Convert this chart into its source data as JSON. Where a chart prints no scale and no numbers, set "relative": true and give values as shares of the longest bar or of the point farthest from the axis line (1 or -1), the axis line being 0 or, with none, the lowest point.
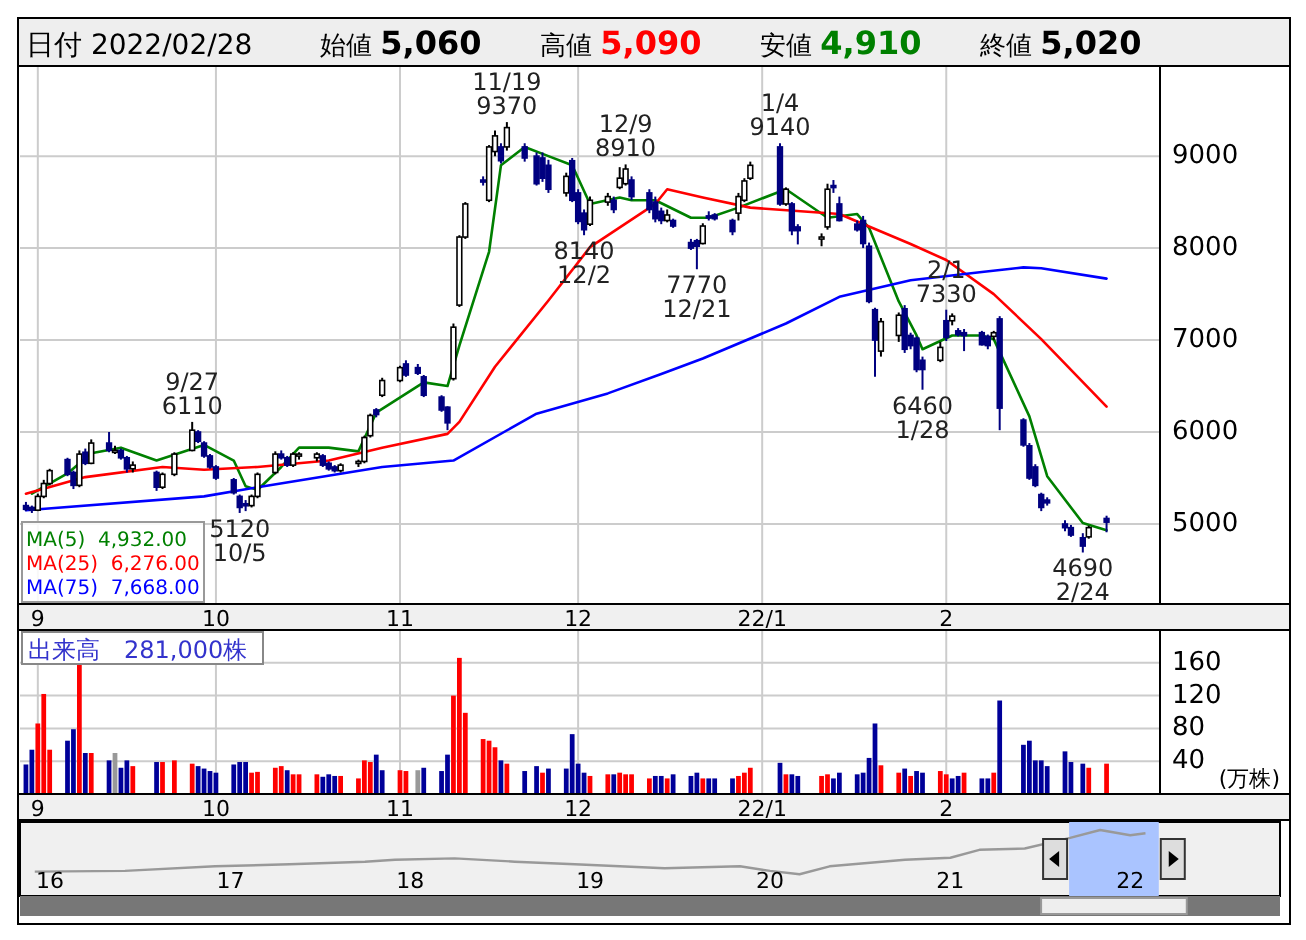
{
  "chart_data": [
    {
      "type": "candlestick",
      "title": "日付 2022/02/28",
      "x": [
        "2021-08-30",
        "2021-08-31",
        "2021-09-01",
        "2021-09-02",
        "2021-09-03",
        "2021-09-06",
        "2021-09-07",
        "2021-09-08",
        "2021-09-09",
        "2021-09-10",
        "2021-09-13",
        "2021-09-14",
        "2021-09-15",
        "2021-09-16",
        "2021-09-17",
        "2021-09-21",
        "2021-09-22",
        "2021-09-24",
        "2021-09-27",
        "2021-09-28",
        "2021-09-29",
        "2021-09-30",
        "2021-10-01",
        "2021-10-04",
        "2021-10-05",
        "2021-10-06",
        "2021-10-07",
        "2021-10-08",
        "2021-10-11",
        "2021-10-12",
        "2021-10-13",
        "2021-10-14",
        "2021-10-15",
        "2021-10-18",
        "2021-10-19",
        "2021-10-20",
        "2021-10-21",
        "2021-10-22",
        "2021-10-25",
        "2021-10-26",
        "2021-10-27",
        "2021-10-28",
        "2021-10-29",
        "2021-11-01",
        "2021-11-02",
        "2021-11-04",
        "2021-11-05",
        "2021-11-08",
        "2021-11-09",
        "2021-11-10",
        "2021-11-11",
        "2021-11-12",
        "2021-11-15",
        "2021-11-16",
        "2021-11-17",
        "2021-11-18",
        "2021-11-19",
        "2021-11-22",
        "2021-11-24",
        "2021-11-25",
        "2021-11-26",
        "2021-11-29",
        "2021-11-30",
        "2021-12-01",
        "2021-12-02",
        "2021-12-03",
        "2021-12-06",
        "2021-12-07",
        "2021-12-08",
        "2021-12-09",
        "2021-12-10",
        "2021-12-13",
        "2021-12-14",
        "2021-12-15",
        "2021-12-16",
        "2021-12-17",
        "2021-12-20",
        "2021-12-21",
        "2021-12-22",
        "2021-12-23",
        "2021-12-24",
        "2021-12-27",
        "2021-12-28",
        "2021-12-29",
        "2021-12-30",
        "2022-01-04",
        "2022-01-05",
        "2022-01-06",
        "2022-01-07",
        "2022-01-11",
        "2022-01-12",
        "2022-01-13",
        "2022-01-14",
        "2022-01-17",
        "2022-01-18",
        "2022-01-19",
        "2022-01-20",
        "2022-01-21",
        "2022-01-24",
        "2022-01-25",
        "2022-01-26",
        "2022-01-27",
        "2022-01-28",
        "2022-01-31",
        "2022-02-01",
        "2022-02-02",
        "2022-02-03",
        "2022-02-04",
        "2022-02-07",
        "2022-02-08",
        "2022-02-09",
        "2022-02-10",
        "2022-02-14",
        "2022-02-15",
        "2022-02-16",
        "2022-02-17",
        "2022-02-18",
        "2022-02-21",
        "2022-02-22",
        "2022-02-24",
        "2022-02-25",
        "2022-02-28"
      ],
      "ohlc": [
        [
          5200,
          5240,
          5140,
          5160
        ],
        [
          5180,
          5200,
          5120,
          5150
        ],
        [
          5150,
          5330,
          5140,
          5300
        ],
        [
          5300,
          5480,
          5280,
          5440
        ],
        [
          5440,
          5600,
          5420,
          5580
        ],
        [
          5700,
          5720,
          5520,
          5540
        ],
        [
          5560,
          5580,
          5380,
          5420
        ],
        [
          5420,
          5800,
          5400,
          5760
        ],
        [
          5780,
          5820,
          5640,
          5660
        ],
        [
          5660,
          5920,
          5650,
          5880
        ],
        [
          5880,
          6000,
          5780,
          5800
        ],
        [
          5800,
          5850,
          5760,
          5800
        ],
        [
          5800,
          5820,
          5700,
          5720
        ],
        [
          5720,
          5740,
          5560,
          5600
        ],
        [
          5600,
          5680,
          5560,
          5640
        ],
        [
          5560,
          5580,
          5360,
          5400
        ],
        [
          5400,
          5560,
          5380,
          5540
        ],
        [
          5540,
          5780,
          5520,
          5760
        ],
        [
          5800,
          6110,
          5790,
          6020
        ],
        [
          6000,
          6020,
          5880,
          5900
        ],
        [
          5880,
          5900,
          5720,
          5740
        ],
        [
          5740,
          5760,
          5600,
          5620
        ],
        [
          5620,
          5640,
          5480,
          5500
        ],
        [
          5480,
          5500,
          5320,
          5340
        ],
        [
          5300,
          5320,
          5120,
          5180
        ],
        [
          5220,
          5260,
          5140,
          5200
        ],
        [
          5200,
          5320,
          5180,
          5300
        ],
        [
          5300,
          5560,
          5280,
          5540
        ],
        [
          5560,
          5790,
          5540,
          5760
        ],
        [
          5760,
          5800,
          5700,
          5720
        ],
        [
          5720,
          5740,
          5620,
          5640
        ],
        [
          5640,
          5780,
          5620,
          5760
        ],
        [
          5740,
          5780,
          5700,
          5760
        ],
        [
          5720,
          5780,
          5680,
          5760
        ],
        [
          5740,
          5760,
          5620,
          5640
        ],
        [
          5660,
          5680,
          5580,
          5600
        ],
        [
          5620,
          5640,
          5560,
          5580
        ],
        [
          5580,
          5660,
          5560,
          5640
        ],
        [
          5660,
          5700,
          5620,
          5680
        ],
        [
          5680,
          5960,
          5660,
          5940
        ],
        [
          5960,
          6200,
          5940,
          6180
        ],
        [
          6240,
          6260,
          6160,
          6190
        ],
        [
          6400,
          6590,
          6380,
          6560
        ],
        [
          6560,
          6720,
          6540,
          6700
        ],
        [
          6740,
          6780,
          6600,
          6620
        ],
        [
          6700,
          6740,
          6620,
          6640
        ],
        [
          6600,
          6620,
          6380,
          6400
        ],
        [
          6380,
          6400,
          6220,
          6240
        ],
        [
          6270,
          6280,
          6020,
          6100
        ],
        [
          6580,
          7180,
          6560,
          7140
        ],
        [
          7380,
          8140,
          7360,
          8120
        ],
        [
          8120,
          8500,
          8100,
          8480
        ],
        [
          8740,
          8780,
          8680,
          8720
        ],
        [
          8520,
          9120,
          8500,
          9100
        ],
        [
          9050,
          9280,
          9000,
          9220
        ],
        [
          9100,
          9140,
          8920,
          8950
        ],
        [
          9100,
          9370,
          9060,
          9310
        ],
        [
          9100,
          9140,
          8940,
          8980
        ],
        [
          9000,
          9040,
          8680,
          8700
        ],
        [
          8980,
          9040,
          8720,
          8760
        ],
        [
          8900,
          8960,
          8600,
          8640
        ],
        [
          8600,
          8820,
          8560,
          8780
        ],
        [
          8950,
          8980,
          8500,
          8520
        ],
        [
          8600,
          8640,
          8260,
          8290
        ],
        [
          8380,
          8420,
          8140,
          8200
        ],
        [
          8260,
          8560,
          8240,
          8520
        ],
        [
          8500,
          8600,
          8460,
          8560
        ],
        [
          8520,
          8560,
          8380,
          8420
        ],
        [
          8660,
          8880,
          8640,
          8760
        ],
        [
          8700,
          8910,
          8680,
          8860
        ],
        [
          8740,
          8780,
          8520,
          8560
        ],
        [
          8600,
          8640,
          8380,
          8420
        ],
        [
          8500,
          8560,
          8280,
          8320
        ],
        [
          8400,
          8440,
          8260,
          8300
        ],
        [
          8300,
          8420,
          8280,
          8360
        ],
        [
          8300,
          8320,
          8220,
          8240
        ],
        [
          8060,
          8100,
          7980,
          8000
        ],
        [
          8080,
          8100,
          7770,
          8020
        ],
        [
          8050,
          8270,
          8040,
          8240
        ],
        [
          8350,
          8400,
          8300,
          8340
        ],
        [
          8360,
          8380,
          8300,
          8320
        ],
        [
          8300,
          8320,
          8140,
          8180
        ],
        [
          8380,
          8600,
          8300,
          8560
        ],
        [
          8520,
          8760,
          8500,
          8730
        ],
        [
          8760,
          8940,
          8740,
          8900
        ],
        [
          9100,
          9140,
          8460,
          8480
        ],
        [
          8480,
          8660,
          8460,
          8640
        ],
        [
          8480,
          8500,
          8140,
          8190
        ],
        [
          8230,
          8260,
          8040,
          8190
        ],
        [
          8100,
          8160,
          8020,
          8120
        ],
        [
          8230,
          8700,
          8200,
          8640
        ],
        [
          8680,
          8740,
          8600,
          8660
        ],
        [
          8480,
          8560,
          8290,
          8300
        ],
        [
          8260,
          8300,
          8180,
          8200
        ],
        [
          8300,
          8350,
          8000,
          8050
        ],
        [
          8020,
          8060,
          7400,
          7420
        ],
        [
          7330,
          7350,
          6600,
          7000
        ],
        [
          6880,
          7240,
          6820,
          7200
        ],
        [
          7050,
          7300,
          6980,
          7270
        ],
        [
          7340,
          7380,
          6860,
          6900
        ],
        [
          7050,
          7080,
          6900,
          6940
        ],
        [
          7020,
          7040,
          6650,
          6680
        ],
        [
          6780,
          6820,
          6460,
          6680
        ],
        [
          6780,
          6980,
          6760,
          6920
        ],
        [
          7210,
          7330,
          6990,
          7030
        ],
        [
          7210,
          7290,
          7160,
          7260
        ],
        [
          7100,
          7130,
          7040,
          7060
        ],
        [
          7080,
          7120,
          6880,
          7050
        ],
        [
          7080,
          7100,
          6940,
          6950
        ],
        [
          7040,
          7060,
          6900,
          6940
        ],
        [
          7040,
          7100,
          7000,
          7080
        ],
        [
          7230,
          7260,
          6020,
          6260
        ],
        [
          6130,
          6150,
          5840,
          5860
        ],
        [
          5850,
          5880,
          5480,
          5500
        ],
        [
          5620,
          5650,
          5400,
          5420
        ],
        [
          5320,
          5340,
          5140,
          5180
        ],
        [
          5260,
          5290,
          5200,
          5230
        ],
        [
          5000,
          5040,
          4920,
          4960
        ],
        [
          4960,
          4990,
          4860,
          4880
        ],
        [
          4850,
          4900,
          4690,
          4760
        ],
        [
          4860,
          4980,
          4840,
          4960
        ],
        [
          5060,
          5090,
          4910,
          5020
        ]
      ],
      "series": [
        {
          "name": "MA(5)  4,932.00",
          "color": "#008000",
          "type": "line",
          "x": [
            "2021-08-31",
            "2021-09-06",
            "2021-09-10",
            "2021-09-15",
            "2021-09-21",
            "2021-09-29",
            "2021-10-04",
            "2021-10-06",
            "2021-10-08",
            "2021-10-12",
            "2021-10-15",
            "2021-10-20",
            "2021-10-25",
            "2021-10-28",
            "2021-11-05",
            "2021-11-09",
            "2021-11-11",
            "2021-11-16",
            "2021-11-18",
            "2021-11-22",
            "2021-11-26",
            "2021-11-30",
            "2021-12-03",
            "2021-12-08",
            "2021-12-10",
            "2021-12-14",
            "2021-12-20",
            "2021-12-23",
            "2021-12-28",
            "2022-01-05",
            "2022-01-12",
            "2022-01-17",
            "2022-01-19",
            "2022-01-24",
            "2022-01-27",
            "2022-01-28",
            "2022-02-02",
            "2022-02-07",
            "2022-02-09",
            "2022-02-15",
            "2022-02-18",
            "2022-02-24",
            "2022-02-28"
          ],
          "values": [
            5330,
            5550,
            5770,
            5830,
            5690,
            5860,
            5690,
            5410,
            5370,
            5620,
            5830,
            5830,
            5790,
            6210,
            6540,
            6500,
            6940,
            7960,
            8900,
            9100,
            9000,
            8900,
            8480,
            8550,
            8520,
            8520,
            8330,
            8330,
            8440,
            8640,
            8330,
            8370,
            8220,
            7420,
            7050,
            6900,
            7050,
            7050,
            7010,
            6170,
            5520,
            5010,
            4932
          ]
        },
        {
          "name": "MA(25)  6,276.00",
          "color": "#ff0000",
          "type": "line",
          "x": [
            "2021-08-30",
            "2021-09-09",
            "2021-09-22",
            "2021-09-29",
            "2021-10-08",
            "2021-10-20",
            "2021-10-29",
            "2021-11-09",
            "2021-11-11",
            "2021-11-17",
            "2021-11-26",
            "2021-12-03",
            "2021-12-14",
            "2021-12-16",
            "2021-12-22",
            "2021-12-30",
            "2022-01-14",
            "2022-01-26",
            "2022-02-01",
            "2022-02-09",
            "2022-02-17",
            "2022-02-28"
          ],
          "values": [
            5330,
            5510,
            5620,
            5590,
            5620,
            5690,
            5830,
            5980,
            6110,
            6710,
            7430,
            8010,
            8480,
            8640,
            8550,
            8440,
            8370,
            8045,
            7870,
            7500,
            7010,
            6276
          ]
        },
        {
          "name": "MA(75)  7,668.00",
          "color": "#0000ff",
          "type": "line",
          "x": [
            "2021-08-30",
            "2021-09-29",
            "2021-10-08",
            "2021-10-29",
            "2021-11-10",
            "2021-11-24",
            "2021-12-06",
            "2021-12-15",
            "2021-12-22",
            "2022-01-05",
            "2022-01-14",
            "2022-01-26",
            "2022-02-07",
            "2022-02-14",
            "2022-02-17",
            "2022-02-28"
          ],
          "values": [
            5150,
            5300,
            5400,
            5620,
            5690,
            6200,
            6420,
            6630,
            6800,
            7180,
            7470,
            7650,
            7740,
            7790,
            7780,
            7668
          ]
        }
      ],
      "xlim": [
        "2021-08-29",
        "2022-03-09"
      ],
      "xticks": [
        {
          "value": "2021-09-01",
          "label": "9"
        },
        {
          "value": "2021-10-01",
          "label": "10"
        },
        {
          "value": "2021-11-01",
          "label": "11"
        },
        {
          "value": "2021-12-01",
          "label": "12"
        },
        {
          "value": "2022-01-01",
          "label": "22/1"
        },
        {
          "value": "2022-02-01",
          "label": "2"
        }
      ],
      "ylim": [
        4130,
        9980
      ],
      "yticks": [
        5000,
        6000,
        7000,
        8000,
        9000
      ],
      "grid": true,
      "legend": "bottom left",
      "annotations": [
        "始値 5,060",
        "高値 5,090",
        "安値 4,910",
        "終値 5,020",
        {
          "text": "9/27\n6110",
          "x": "2021-09-27",
          "y": 6110
        },
        {
          "text": "5120\n10/5",
          "x": "2021-10-05",
          "y": 5120
        },
        {
          "text": "11/19\n9370",
          "x": "2021-11-19",
          "y": 9370
        },
        {
          "text": "8140\n12/2",
          "x": "2021-12-02",
          "y": 8140
        },
        {
          "text": "12/9\n8910",
          "x": "2021-12-09",
          "y": 8910
        },
        {
          "text": "7770\n12/21",
          "x": "2021-12-21",
          "y": 7770
        },
        {
          "text": "1/4\n9140",
          "x": "2022-01-04",
          "y": 9140
        },
        {
          "text": "6460\n1/28",
          "x": "2022-01-28",
          "y": 6460
        },
        {
          "text": "2/1\n7330",
          "x": "2022-02-01",
          "y": 7330
        },
        {
          "text": "4690\n2/24",
          "x": "2022-02-24",
          "y": 4690
        }
      ]
    },
    {
      "type": "bar",
      "ylabel": "(万株)",
      "x": [
        "2021-08-30",
        "2021-08-31",
        "2021-09-01",
        "2021-09-02",
        "2021-09-03",
        "2021-09-06",
        "2021-09-07",
        "2021-09-08",
        "2021-09-09",
        "2021-09-10",
        "2021-09-13",
        "2021-09-14",
        "2021-09-15",
        "2021-09-16",
        "2021-09-17",
        "2021-09-21",
        "2021-09-22",
        "2021-09-24",
        "2021-09-27",
        "2021-09-28",
        "2021-09-29",
        "2021-09-30",
        "2021-10-01",
        "2021-10-04",
        "2021-10-05",
        "2021-10-06",
        "2021-10-07",
        "2021-10-08",
        "2021-10-11",
        "2021-10-12",
        "2021-10-13",
        "2021-10-14",
        "2021-10-15",
        "2021-10-18",
        "2021-10-19",
        "2021-10-20",
        "2021-10-21",
        "2021-10-22",
        "2021-10-25",
        "2021-10-26",
        "2021-10-27",
        "2021-10-28",
        "2021-10-29",
        "2021-11-01",
        "2021-11-02",
        "2021-11-04",
        "2021-11-05",
        "2021-11-08",
        "2021-11-09",
        "2021-11-10",
        "2021-11-11",
        "2021-11-12",
        "2021-11-15",
        "2021-11-16",
        "2021-11-17",
        "2021-11-18",
        "2021-11-19",
        "2021-11-22",
        "2021-11-24",
        "2021-11-25",
        "2021-11-26",
        "2021-11-29",
        "2021-11-30",
        "2021-12-01",
        "2021-12-02",
        "2021-12-03",
        "2021-12-06",
        "2021-12-07",
        "2021-12-08",
        "2021-12-09",
        "2021-12-10",
        "2021-12-13",
        "2021-12-14",
        "2021-12-15",
        "2021-12-16",
        "2021-12-17",
        "2021-12-20",
        "2021-12-21",
        "2021-12-22",
        "2021-12-23",
        "2021-12-24",
        "2021-12-27",
        "2021-12-28",
        "2021-12-29",
        "2021-12-30",
        "2022-01-04",
        "2022-01-05",
        "2022-01-06",
        "2022-01-07",
        "2022-01-11",
        "2022-01-12",
        "2022-01-13",
        "2022-01-14",
        "2022-01-17",
        "2022-01-18",
        "2022-01-19",
        "2022-01-20",
        "2022-01-21",
        "2022-01-24",
        "2022-01-25",
        "2022-01-26",
        "2022-01-27",
        "2022-01-28",
        "2022-01-31",
        "2022-02-01",
        "2022-02-02",
        "2022-02-03",
        "2022-02-04",
        "2022-02-07",
        "2022-02-08",
        "2022-02-09",
        "2022-02-10",
        "2022-02-14",
        "2022-02-15",
        "2022-02-16",
        "2022-02-17",
        "2022-02-18",
        "2022-02-21",
        "2022-02-22",
        "2022-02-24",
        "2022-02-25",
        "2022-02-28"
      ],
      "values": [
        36,
        54,
        86,
        122,
        54,
        65,
        79,
        163,
        50,
        50,
        41,
        50,
        32,
        41,
        34,
        39,
        39,
        41,
        37,
        34,
        31,
        28,
        26,
        36,
        39,
        39,
        26,
        27,
        32,
        34,
        29,
        24,
        24,
        24,
        21,
        24,
        22,
        22,
        19,
        41,
        39,
        48,
        29,
        29,
        28,
        29,
        32,
        28,
        48,
        120,
        166,
        99,
        67,
        65,
        57,
        41,
        37,
        28,
        34,
        26,
        31,
        31,
        73,
        37,
        26,
        22,
        24,
        24,
        26,
        24,
        24,
        19,
        22,
        22,
        19,
        24,
        22,
        26,
        19,
        19,
        19,
        19,
        22,
        26,
        32,
        38,
        24,
        24,
        22,
        22,
        24,
        19,
        26,
        24,
        26,
        44,
        86,
        35,
        26,
        31,
        22,
        28,
        26,
        28,
        24,
        19,
        22,
        26,
        19,
        19,
        26,
        114,
        60,
        65,
        41,
        41,
        34,
        52,
        39,
        37,
        32,
        37
      ],
      "colors": [
        "#000099",
        "#000099",
        "#ff0000",
        "#ff0000",
        "#ff0000",
        "#000099",
        "#000099",
        "#ff0000",
        "#000099",
        "#ff0000",
        "#000099",
        "#999999",
        "#000099",
        "#000099",
        "#ff0000",
        "#000099",
        "#ff0000",
        "#ff0000",
        "#ff0000",
        "#000099",
        "#000099",
        "#000099",
        "#000099",
        "#000099",
        "#000099",
        "#000099",
        "#ff0000",
        "#ff0000",
        "#ff0000",
        "#ff0000",
        "#000099",
        "#ff0000",
        "#ff0000",
        "#ff0000",
        "#000099",
        "#000099",
        "#000099",
        "#ff0000",
        "#ff0000",
        "#ff0000",
        "#ff0000",
        "#000099",
        "#000099",
        "#ff0000",
        "#ff0000",
        "#999999",
        "#000099",
        "#000099",
        "#000099",
        "#ff0000",
        "#ff0000",
        "#ff0000",
        "#ff0000",
        "#ff0000",
        "#ff0000",
        "#000099",
        "#ff0000",
        "#000099",
        "#000099",
        "#ff0000",
        "#000099",
        "#000099",
        "#000099",
        "#000099",
        "#000099",
        "#ff0000",
        "#ff0000",
        "#000099",
        "#ff0000",
        "#ff0000",
        "#ff0000",
        "#ff0000",
        "#000099",
        "#000099",
        "#ff0000",
        "#000099",
        "#000099",
        "#000099",
        "#ff0000",
        "#000099",
        "#000099",
        "#000099",
        "#ff0000",
        "#ff0000",
        "#ff0000",
        "#000099",
        "#ff0000",
        "#000099",
        "#000099",
        "#ff0000",
        "#ff0000",
        "#000099",
        "#000099",
        "#000099",
        "#000099",
        "#000099",
        "#000099",
        "#ff0000",
        "#ff0000",
        "#000099",
        "#ff0000",
        "#000099",
        "#000099",
        "#ff0000",
        "#ff0000",
        "#000099",
        "#000099",
        "#ff0000",
        "#000099",
        "#000099",
        "#ff0000",
        "#000099",
        "#000099",
        "#000099",
        "#000099",
        "#000099",
        "#000099",
        "#000099",
        "#000099",
        "#000099",
        "#ff0000",
        "#ff0000"
      ],
      "xlim": [
        "2021-08-29",
        "2022-03-09"
      ],
      "xticks": [
        {
          "value": "2021-09-01",
          "label": "9"
        },
        {
          "value": "2021-10-01",
          "label": "10"
        },
        {
          "value": "2021-11-01",
          "label": "11"
        },
        {
          "value": "2021-12-01",
          "label": "12"
        },
        {
          "value": "2022-01-01",
          "label": "22/1"
        },
        {
          "value": "2022-02-01",
          "label": "2"
        }
      ],
      "ylim": [
        0,
        200
      ],
      "yticks": [
        40,
        80,
        120,
        160
      ],
      "grid": true,
      "annotations": [
        "出来高　281,000株"
      ]
    },
    {
      "type": "line",
      "relative": true,
      "color": "#999999",
      "x": [
        "2015-12",
        "2016-06",
        "2016-12",
        "2017-05",
        "2017-10",
        "2017-12",
        "2018-04",
        "2018-08",
        "2018-12",
        "2019-06",
        "2019-11",
        "2020-01",
        "2020-03",
        "2020-05",
        "2020-10",
        "2021-01",
        "2021-03",
        "2021-06",
        "2021-09",
        "2021-11",
        "2022-01",
        "2022-02"
      ],
      "values": [
        0.37,
        0.38,
        0.45,
        0.48,
        0.52,
        0.55,
        0.57,
        0.52,
        0.48,
        0.42,
        0.45,
        0.38,
        0.33,
        0.45,
        0.55,
        0.58,
        0.7,
        0.72,
        0.88,
        1,
        0.92,
        0.95
      ],
      "xlim": [
        "2015-11",
        "2022-11"
      ],
      "xticks": [
        {
          "value": "2016-01",
          "label": "16"
        },
        {
          "value": "2017-01",
          "label": "17"
        },
        {
          "value": "2018-01",
          "label": "18"
        },
        {
          "value": "2019-01",
          "label": "19"
        },
        {
          "value": "2020-01",
          "label": "20"
        },
        {
          "value": "2021-01",
          "label": "21"
        },
        {
          "value": "2022-01",
          "label": "22"
        }
      ],
      "bands": [
        {
          "axis": "x",
          "from": "2021-08-30",
          "to": "2022-02-28",
          "color": "#aac4ff"
        }
      ]
    }
  ]
}
